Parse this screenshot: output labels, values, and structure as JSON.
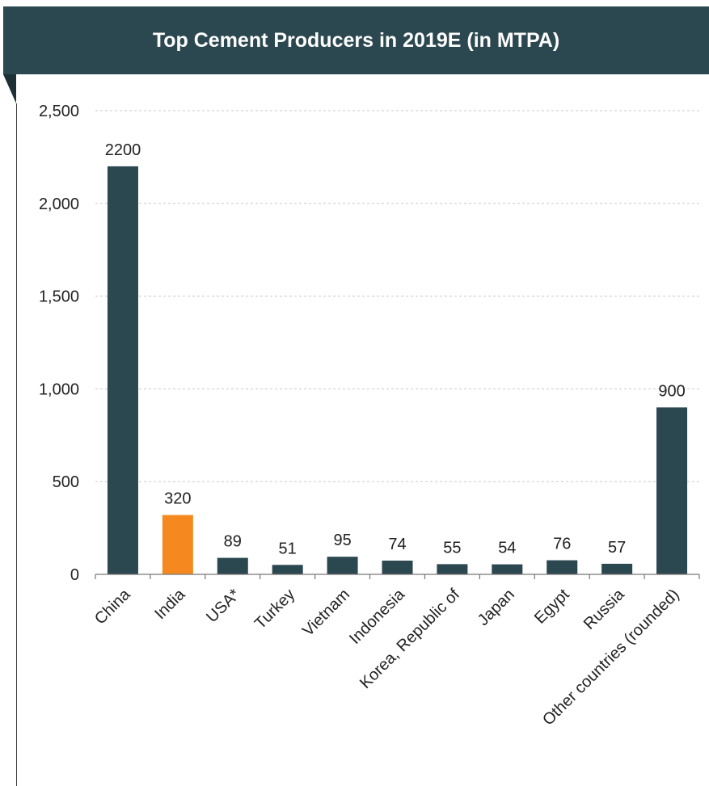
{
  "chart_data": {
    "type": "bar",
    "title": "Top Cement Producers in 2019E (in MTPA)",
    "categories": [
      "China",
      "India",
      "USA*",
      "Turkey",
      "Vietnam",
      "Indonesia",
      "Korea, Republic of",
      "Japan",
      "Egypt",
      "Russia",
      "Other countries (rounded)"
    ],
    "values": [
      2200,
      320,
      89,
      51,
      95,
      74,
      55,
      54,
      76,
      57,
      900
    ],
    "data_labels": [
      "2200",
      "320",
      "89",
      "51",
      "95",
      "74",
      "55",
      "54",
      "76",
      "57",
      "900"
    ],
    "ylim": [
      0,
      2500
    ],
    "yticks": [
      0,
      500,
      1000,
      1500,
      2000,
      2500
    ],
    "ytick_labels": [
      "0",
      "500",
      "1,000",
      "1,500",
      "2,000",
      "2,500"
    ],
    "grid": true,
    "bar_color": "#2b474f",
    "highlight_category": "India",
    "highlight_color": "#f5891f",
    "xlabel": "",
    "ylabel": ""
  }
}
